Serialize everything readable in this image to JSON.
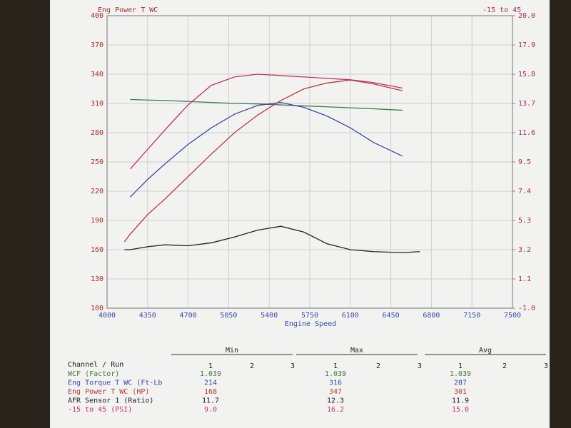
{
  "chart_data": {
    "type": "line",
    "xlabel": "Engine Speed",
    "ylabel": "Eng Power T WC",
    "y2label": "-15 to 45",
    "x": [
      4150,
      4200,
      4350,
      4500,
      4700,
      4900,
      5100,
      5300,
      5500,
      5700,
      5900,
      6100,
      6300,
      6550,
      6700
    ],
    "xlim": [
      4000,
      7500
    ],
    "xticks": [
      4000,
      4350,
      4700,
      5050,
      5400,
      5750,
      6100,
      6450,
      6800,
      7150,
      7500
    ],
    "ylim": [
      100,
      400
    ],
    "yticks": [
      100,
      130,
      160,
      190,
      220,
      250,
      280,
      310,
      340,
      370,
      400
    ],
    "y2lim": [
      -1,
      20
    ],
    "y2ticks": [
      {
        "value": -1,
        "label": "-1.0"
      },
      1.1,
      3.2,
      5.3,
      7.4,
      9.5,
      11.6,
      13.7,
      15.8,
      17.9,
      {
        "value": 20,
        "label": "20.0"
      }
    ],
    "grid": true,
    "series": [
      {
        "name": "WCF (Factor)",
        "color": "#3d7a45",
        "values": [
          null,
          314,
          313.5,
          313,
          312,
          311,
          310,
          309.5,
          308.5,
          307.5,
          306.5,
          305.5,
          304.5,
          303,
          null
        ]
      },
      {
        "name": "Eng Torque T WC (Ft-Lb",
        "color": "#3a4aa6",
        "values": [
          null,
          214,
          232,
          248,
          268,
          285,
          299,
          308,
          311,
          306,
          297,
          285,
          270,
          256,
          null
        ]
      },
      {
        "name": "Eng Power T WC (HP)",
        "color": "#b33a3a",
        "values": [
          168,
          176,
          196,
          212,
          235,
          258,
          280,
          298,
          313,
          325,
          331,
          334,
          330,
          323,
          null
        ]
      },
      {
        "name": "AFR Sensor 1 (Ratio)",
        "color": "#222222",
        "values": [
          160,
          160,
          163,
          165,
          164,
          167,
          173,
          180,
          184,
          178,
          166,
          160,
          158,
          157,
          158
        ]
      },
      {
        "name": "-15 to 45 (PSI)",
        "color": "#c4306a",
        "axis": "y2",
        "values": [
          null,
          9.0,
          10.4,
          11.8,
          13.6,
          15.0,
          15.6,
          15.8,
          15.7,
          15.6,
          15.5,
          15.4,
          15.2,
          14.8,
          null
        ]
      }
    ]
  },
  "table": {
    "groups": [
      "Min",
      "Max",
      "Avg"
    ],
    "header": "Channel / Run",
    "runs": [
      "1",
      "2",
      "3"
    ],
    "rows": [
      [
        "1.039",
        "1.039",
        "1.039"
      ],
      [
        "214",
        "316",
        "287"
      ],
      [
        "168",
        "347",
        "301"
      ],
      [
        "11.7",
        "12.3",
        "11.9"
      ],
      [
        "9.0",
        "16.2",
        "15.0"
      ]
    ]
  }
}
